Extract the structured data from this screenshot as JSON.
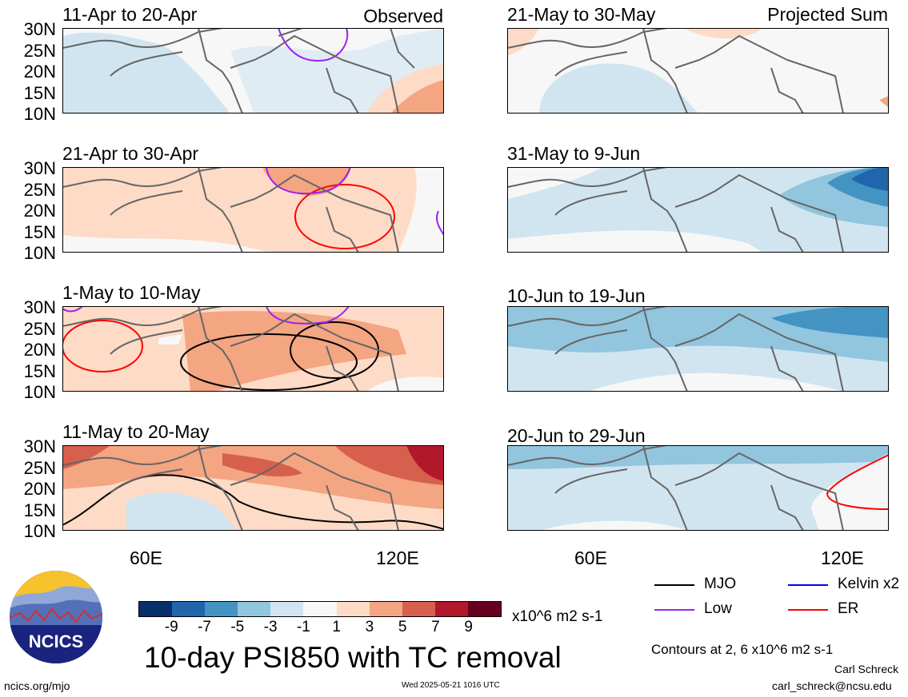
{
  "observed_label": "Observed",
  "projected_label": "Projected Sum",
  "panels": [
    {
      "title": "11-Apr to 20-Apr"
    },
    {
      "title": "21-Apr to 30-Apr"
    },
    {
      "title": "1-May to 10-May"
    },
    {
      "title": "11-May to 20-May"
    },
    {
      "title": "21-May to 30-May"
    },
    {
      "title": "31-May to 9-Jun"
    },
    {
      "title": "10-Jun to 19-Jun"
    },
    {
      "title": "20-Jun to 29-Jun"
    }
  ],
  "lat_labels": [
    "30N",
    "25N",
    "20N",
    "15N",
    "10N"
  ],
  "lon_labels": [
    "60E",
    "120E"
  ],
  "colorbar": {
    "ticks": [
      "-9",
      "-7",
      "-5",
      "-3",
      "-1",
      "1",
      "3",
      "5",
      "7",
      "9"
    ],
    "colors": [
      "#08306b",
      "#2166ac",
      "#4393c3",
      "#92c5de",
      "#d1e5f0",
      "#f7f7f7",
      "#fddbc7",
      "#f4a582",
      "#d6604d",
      "#b2182b",
      "#67001f"
    ],
    "units": "x10^6 m2 s-1"
  },
  "legend": {
    "mjo": "MJO",
    "kelvin": "Kelvin x2",
    "low": "Low",
    "er": "ER",
    "mjo_color": "#000000",
    "kelvin_color": "#0000ff",
    "low_color": "#a020f0",
    "er_color": "#ff0000"
  },
  "contours_note": "Contours at 2, 6 x10^6 m2 s-1",
  "plot_title": "10-day PSI850 with TC removal",
  "logo_text": "NCICS",
  "footer": {
    "url": "ncics.org/mjo",
    "timestamp": "Wed 2025-05-21 1016 UTC",
    "author": "Carl Schreck",
    "email": "carl_schreck@ncsu.edu"
  }
}
